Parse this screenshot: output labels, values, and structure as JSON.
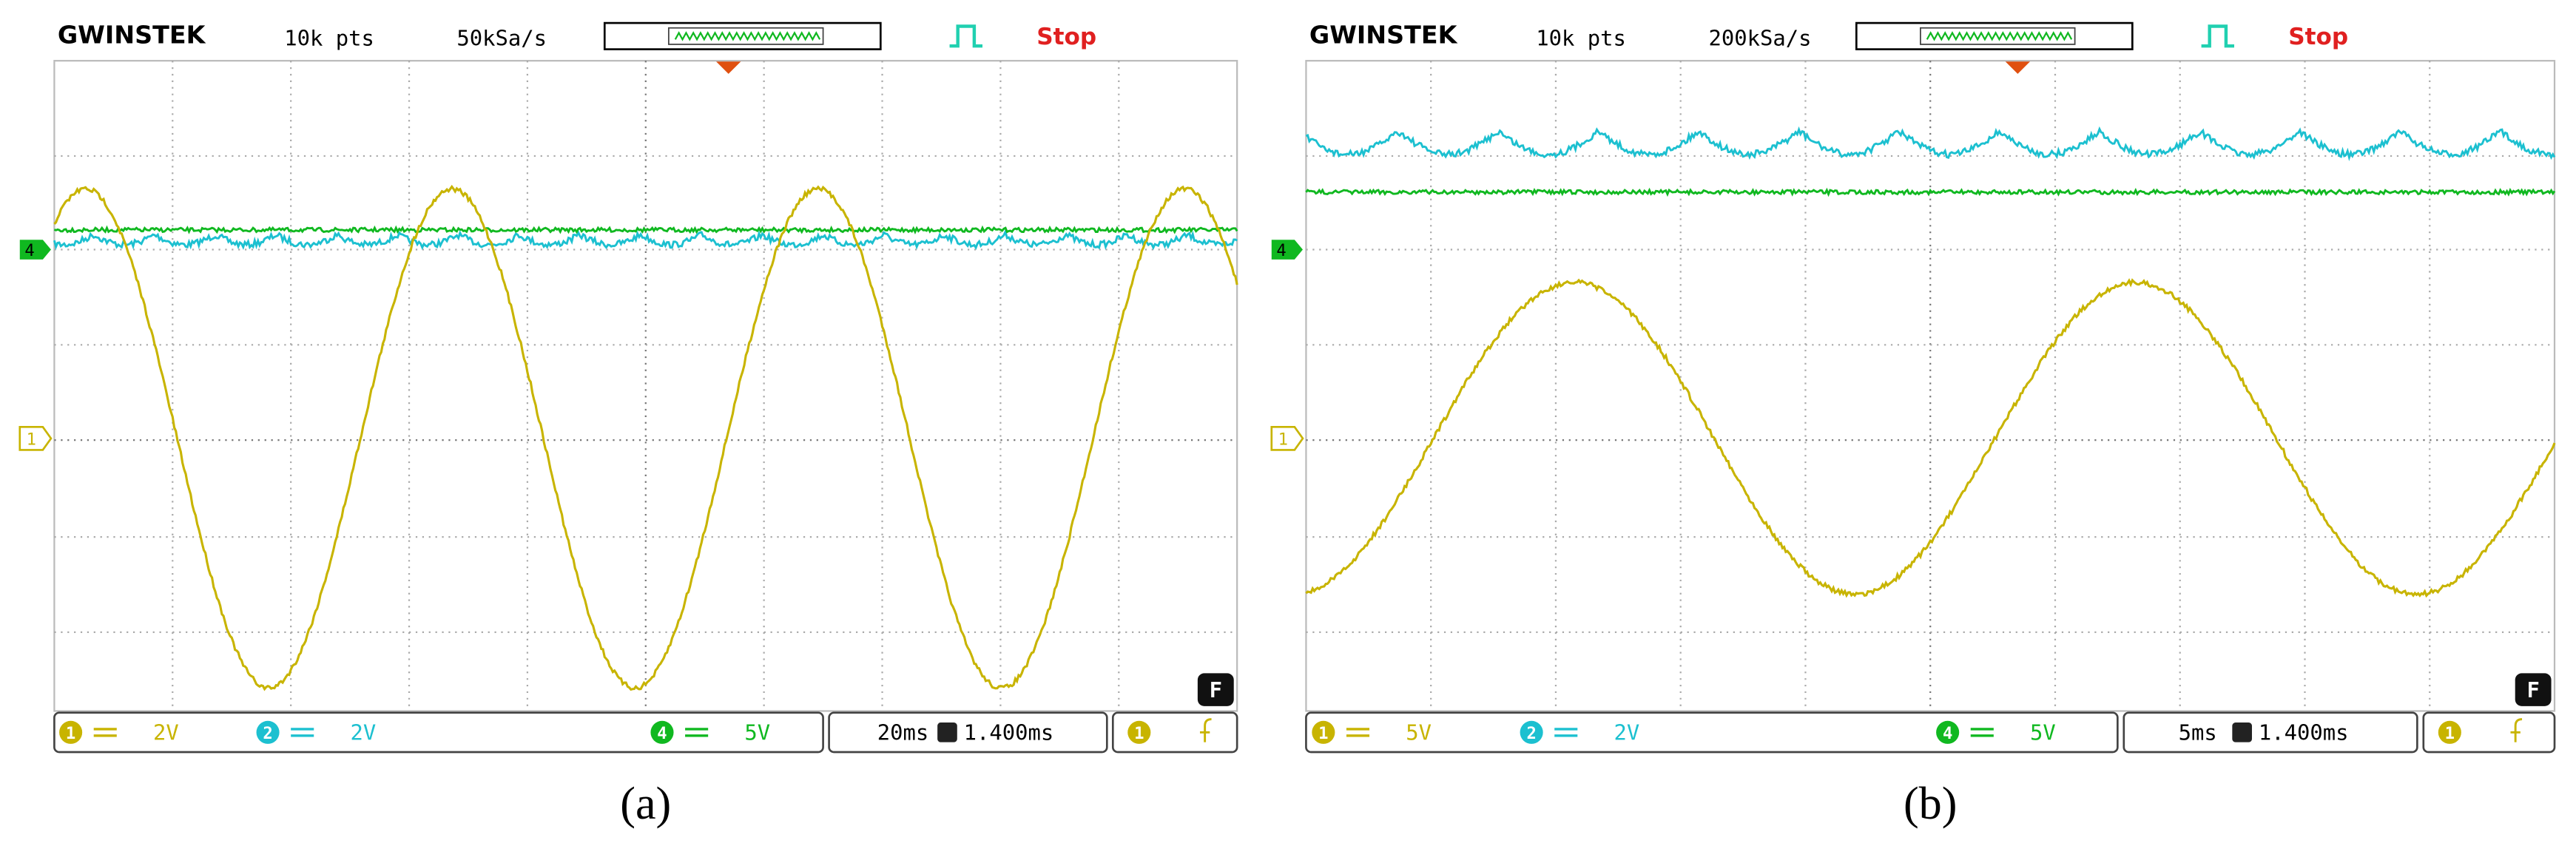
{
  "panels": [
    {
      "brand": "GWINSTEK",
      "points": "10k pts",
      "sample_rate": "50kSa/s",
      "status": "Stop",
      "markers": [
        "4",
        "1"
      ],
      "channels": [
        {
          "id": "1",
          "scale": "2V"
        },
        {
          "id": "2",
          "scale": "2V"
        },
        {
          "id": "4",
          "scale": "5V"
        }
      ],
      "timebase": "20ms",
      "position": "1.400ms",
      "trigger_channel": "1",
      "fine": "F",
      "caption": "(a)"
    },
    {
      "brand": "GWINSTEK",
      "points": "10k pts",
      "sample_rate": "200kSa/s",
      "status": "Stop",
      "markers": [
        "4",
        "1"
      ],
      "channels": [
        {
          "id": "1",
          "scale": "5V"
        },
        {
          "id": "2",
          "scale": "2V"
        },
        {
          "id": "4",
          "scale": "5V"
        }
      ],
      "timebase": "5ms",
      "position": "1.400ms",
      "trigger_channel": "1",
      "fine": "F",
      "caption": "(b)"
    }
  ]
}
